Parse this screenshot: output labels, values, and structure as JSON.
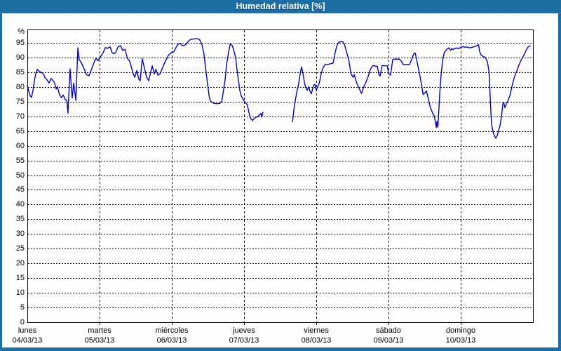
{
  "window": {
    "title": "Humedad relativa [%]"
  },
  "colors": {
    "titlebar_bg": "#1c6ea4",
    "titlebar_text": "#ffffff",
    "window_border": "#1c6ea4",
    "plot_bg": "#ffffff",
    "grid": "#000000",
    "axis_text": "#000000",
    "plot_line": "#0000cc"
  },
  "chart_data": {
    "type": "line",
    "title": "Humedad relativa [%]",
    "xlabel": "",
    "ylabel": "%",
    "ylim": [
      0,
      99.5
    ],
    "yticks": [
      0,
      5,
      10,
      15,
      20,
      25,
      30,
      35,
      40,
      45,
      50,
      55,
      60,
      65,
      70,
      75,
      80,
      85,
      90,
      95
    ],
    "grid": "dashed",
    "legend": "none",
    "x_unit": "hours from Monday 00:00",
    "x_range": [
      0,
      168
    ],
    "days": [
      {
        "label": "lunes",
        "date": "04/03/13"
      },
      {
        "label": "martes",
        "date": "05/03/13"
      },
      {
        "label": "miércoles",
        "date": "06/03/13"
      },
      {
        "label": "jueves",
        "date": "07/03/13"
      },
      {
        "label": "viernes",
        "date": "08/03/13"
      },
      {
        "label": "sábado",
        "date": "09/03/13"
      },
      {
        "label": "domingo",
        "date": "10/03/13"
      }
    ],
    "data_gap_hours": [
      78.3,
      88.1
    ],
    "series": [
      {
        "name": "Humedad relativa [%]",
        "color": "#0000cc",
        "segments": [
          [
            [
              0,
              80.5
            ],
            [
              0.5,
              78.5
            ],
            [
              0.9,
              77
            ],
            [
              1.4,
              76.5
            ],
            [
              1.9,
              79
            ],
            [
              2.3,
              82
            ],
            [
              2.8,
              84.5
            ],
            [
              3.3,
              86
            ],
            [
              3.7,
              85.5
            ],
            [
              4.2,
              85.2
            ],
            [
              4.9,
              84.8
            ],
            [
              5.4,
              84.3
            ],
            [
              5.8,
              83.2
            ],
            [
              6.5,
              82.5
            ],
            [
              7.2,
              81.3
            ],
            [
              7.9,
              82.9
            ],
            [
              8.9,
              81.7
            ],
            [
              9.6,
              79.3
            ],
            [
              10,
              80.1
            ],
            [
              10.7,
              77.3
            ],
            [
              11.4,
              76.3
            ],
            [
              11.9,
              77.3
            ],
            [
              12.6,
              75.7
            ],
            [
              13.1,
              75.4
            ],
            [
              13.5,
              71.1
            ],
            [
              14.2,
              86.2
            ],
            [
              14.9,
              76.2
            ],
            [
              15.4,
              81.3
            ],
            [
              16.1,
              75.4
            ],
            [
              16.8,
              93.3
            ],
            [
              17.2,
              89.3
            ],
            [
              17.9,
              88.3
            ],
            [
              18.9,
              86.1
            ],
            [
              19.6,
              84.2
            ],
            [
              20.5,
              83.8
            ],
            [
              21.7,
              87
            ],
            [
              22.4,
              88.9
            ],
            [
              22.8,
              89.7
            ],
            [
              23.5,
              88.9
            ],
            [
              24.2,
              90.1
            ],
            [
              25.2,
              91.7
            ],
            [
              25.9,
              93.4
            ],
            [
              26.6,
              93.1
            ],
            [
              27,
              93.4
            ],
            [
              27.5,
              93.6
            ],
            [
              28.2,
              91.6
            ],
            [
              28.7,
              91.3
            ],
            [
              29.4,
              91.8
            ],
            [
              30.1,
              93.6
            ],
            [
              31,
              94
            ],
            [
              31.7,
              92.4
            ],
            [
              32.4,
              92.8
            ],
            [
              33.3,
              89.6
            ],
            [
              34,
              88.8
            ],
            [
              35.2,
              84.4
            ],
            [
              35.7,
              83.3
            ],
            [
              36.4,
              85.6
            ],
            [
              37.1,
              82.5
            ],
            [
              37.5,
              82.1
            ],
            [
              38.2,
              89.6
            ],
            [
              39.2,
              85.2
            ],
            [
              39.6,
              83.3
            ],
            [
              40.3,
              82.1
            ],
            [
              41.5,
              87.2
            ],
            [
              42.2,
              84.4
            ],
            [
              42.7,
              86
            ],
            [
              43.4,
              84
            ],
            [
              44.1,
              84.5
            ],
            [
              45.7,
              88.4
            ],
            [
              46.9,
              90.8
            ],
            [
              47.8,
              91.6
            ],
            [
              48.7,
              92
            ],
            [
              49.9,
              94.4
            ],
            [
              50.8,
              94.8
            ],
            [
              51.5,
              94
            ],
            [
              52.2,
              94.2
            ],
            [
              52.7,
              94.4
            ],
            [
              53.4,
              95.4
            ],
            [
              54.3,
              96.2
            ],
            [
              55.2,
              96.3
            ],
            [
              56.2,
              96.4
            ],
            [
              56.9,
              96.3
            ],
            [
              57.3,
              96
            ],
            [
              58,
              94.4
            ],
            [
              58.7,
              91.2
            ],
            [
              59.2,
              86.4
            ],
            [
              59.9,
              80.9
            ],
            [
              60.4,
              76.9
            ],
            [
              60.8,
              75.3
            ],
            [
              61.3,
              74.8
            ],
            [
              62,
              74.4
            ],
            [
              62.9,
              74.3
            ],
            [
              63.9,
              74.4
            ],
            [
              64.6,
              75.1
            ],
            [
              65,
              77.7
            ],
            [
              65.7,
              82.5
            ],
            [
              66.2,
              87.6
            ],
            [
              66.9,
              92
            ],
            [
              67.4,
              94.6
            ],
            [
              68.1,
              94.1
            ],
            [
              68.5,
              92.8
            ],
            [
              69.2,
              90
            ],
            [
              69.7,
              85.6
            ],
            [
              70.2,
              81.7
            ],
            [
              70.6,
              78.9
            ],
            [
              71.1,
              76.9
            ],
            [
              71.8,
              75.6
            ],
            [
              72.3,
              74.8
            ],
            [
              73,
              74.1
            ],
            [
              73.2,
              73.3
            ],
            [
              73.7,
              71
            ],
            [
              74.1,
              69.4
            ],
            [
              74.8,
              68.6
            ],
            [
              75.5,
              69.4
            ],
            [
              76.2,
              69.8
            ],
            [
              76.9,
              70.2
            ],
            [
              77.6,
              71
            ],
            [
              77.9,
              69.8
            ],
            [
              78.3,
              71.4
            ]
          ],
          [
            [
              88.1,
              68.2
            ],
            [
              88.8,
              74.1
            ],
            [
              89.5,
              78.1
            ],
            [
              90.2,
              81.3
            ],
            [
              90.7,
              84.8
            ],
            [
              91.1,
              86.8
            ],
            [
              91.6,
              84.4
            ],
            [
              92.1,
              81.3
            ],
            [
              92.5,
              79.7
            ],
            [
              93,
              78.9
            ],
            [
              93.5,
              80.1
            ],
            [
              93.9,
              78.5
            ],
            [
              94.4,
              77.7
            ],
            [
              95.1,
              80.5
            ],
            [
              95.6,
              80.9
            ],
            [
              96,
              78.9
            ],
            [
              97,
              81.3
            ],
            [
              97.7,
              84.8
            ],
            [
              98.4,
              86.8
            ],
            [
              99.1,
              87.7
            ],
            [
              100,
              87.7
            ],
            [
              100.9,
              87.9
            ],
            [
              101.6,
              88.1
            ],
            [
              102.1,
              90.8
            ],
            [
              102.8,
              94
            ],
            [
              103.5,
              95.2
            ],
            [
              104.2,
              95.4
            ],
            [
              104.9,
              95.3
            ],
            [
              105.4,
              94.4
            ],
            [
              105.8,
              92.8
            ],
            [
              106.8,
              89.2
            ],
            [
              107.5,
              84.5
            ],
            [
              108.2,
              83.3
            ],
            [
              108.6,
              84.2
            ],
            [
              109.3,
              81.7
            ],
            [
              110.3,
              79.4
            ],
            [
              111,
              77.8
            ],
            [
              111.7,
              79.8
            ],
            [
              112.6,
              81.8
            ],
            [
              113.3,
              83.7
            ],
            [
              114,
              86.1
            ],
            [
              114.9,
              87.3
            ],
            [
              115.6,
              87.1
            ],
            [
              116.3,
              87
            ],
            [
              116.8,
              84.2
            ],
            [
              117.2,
              83.7
            ],
            [
              117.9,
              87.3
            ],
            [
              118.6,
              87.2
            ],
            [
              119.6,
              87.2
            ],
            [
              120,
              84.6
            ],
            [
              120.7,
              84
            ],
            [
              121.4,
              89.3
            ],
            [
              122.1,
              89.5
            ],
            [
              122.8,
              89.4
            ],
            [
              123.5,
              89.5
            ],
            [
              124.2,
              88.9
            ],
            [
              124.9,
              87.6
            ],
            [
              125.6,
              87.6
            ],
            [
              126.3,
              87.6
            ],
            [
              127,
              87.6
            ],
            [
              127.7,
              89.3
            ],
            [
              128.4,
              91.3
            ],
            [
              128.9,
              91.5
            ],
            [
              129.6,
              88.1
            ],
            [
              130.3,
              84.5
            ],
            [
              130.8,
              81.7
            ],
            [
              131.5,
              77.4
            ],
            [
              131.9,
              77.8
            ],
            [
              132.6,
              78.6
            ],
            [
              133.1,
              76.6
            ],
            [
              133.8,
              73.4
            ],
            [
              134.7,
              71
            ],
            [
              135.2,
              70.2
            ],
            [
              135.7,
              67.4
            ],
            [
              135.9,
              66.2
            ],
            [
              136.1,
              68.3
            ],
            [
              136.4,
              66.3
            ],
            [
              136.8,
              73.3
            ],
            [
              137.1,
              78.9
            ],
            [
              137.5,
              84.4
            ],
            [
              138,
              89.2
            ],
            [
              138.5,
              91.6
            ],
            [
              139.4,
              92.8
            ],
            [
              140.1,
              93.3
            ],
            [
              140.6,
              92.4
            ],
            [
              141,
              93
            ],
            [
              141.5,
              92.7
            ],
            [
              142,
              93.1
            ],
            [
              142.7,
              93.2
            ],
            [
              143.4,
              93.1
            ],
            [
              144,
              93.5
            ],
            [
              144.7,
              93.7
            ],
            [
              145.4,
              93.5
            ],
            [
              146.1,
              93.6
            ],
            [
              146.8,
              93.3
            ],
            [
              147.5,
              93.4
            ],
            [
              148.2,
              93.6
            ],
            [
              148.9,
              93.8
            ],
            [
              149.4,
              94.1
            ],
            [
              149.9,
              94.4
            ],
            [
              150.3,
              92
            ],
            [
              150.8,
              90.8
            ],
            [
              151.5,
              90.3
            ],
            [
              152.2,
              90.1
            ],
            [
              152.9,
              88.4
            ],
            [
              153.4,
              85.2
            ],
            [
              153.6,
              80.9
            ],
            [
              154.1,
              69.9
            ],
            [
              154.3,
              67
            ],
            [
              154.8,
              64.5
            ],
            [
              155.2,
              63.3
            ],
            [
              155.7,
              62.6
            ],
            [
              156.2,
              63.7
            ],
            [
              156.6,
              65.4
            ],
            [
              157.1,
              67
            ],
            [
              157.6,
              70.5
            ],
            [
              158,
              74.1
            ],
            [
              158.3,
              74.7
            ],
            [
              158.7,
              72.9
            ],
            [
              159.2,
              74.3
            ],
            [
              159.7,
              75.3
            ],
            [
              160.4,
              77.3
            ],
            [
              161.1,
              80.5
            ],
            [
              161.8,
              83.3
            ],
            [
              162.7,
              85.6
            ],
            [
              163.4,
              87.6
            ],
            [
              164.1,
              89.2
            ],
            [
              165,
              90.8
            ],
            [
              165.7,
              92.4
            ],
            [
              166.4,
              93.6
            ],
            [
              167.1,
              94
            ]
          ]
        ]
      }
    ]
  }
}
